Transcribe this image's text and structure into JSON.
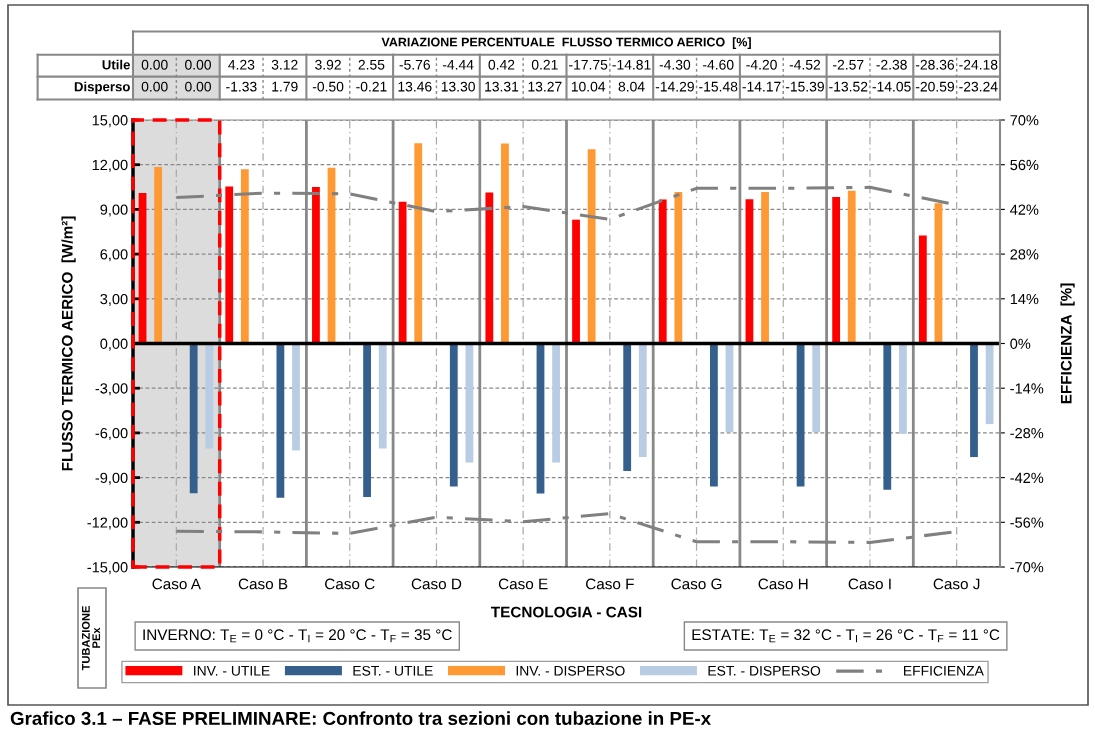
{
  "chart_data": {
    "type": "bar",
    "title": "Grafico 3.1 – FASE PRELIMINARE: Confronto tra sezioni con tubazione in PE-x",
    "xlabel": "TECNOLOGIA - CASI",
    "ylabel": "FLUSSO TERMICO AERICO  [W/m²]",
    "y2label": "EFFICIENZA  [%]",
    "categories": [
      "Caso A",
      "Caso B",
      "Caso C",
      "Caso D",
      "Caso E",
      "Caso F",
      "Caso G",
      "Caso H",
      "Caso I",
      "Caso J"
    ],
    "series": [
      {
        "name": "INV. - UTILE",
        "color": "#ff0000",
        "values": [
          10.1,
          10.53,
          10.5,
          9.52,
          10.14,
          8.31,
          9.67,
          9.68,
          9.84,
          7.24
        ]
      },
      {
        "name": "EST. - UTILE",
        "color": "#355f8d",
        "values": [
          -10.05,
          -10.36,
          -10.31,
          -9.6,
          -10.07,
          -8.56,
          -9.59,
          -9.6,
          -9.81,
          -7.62
        ]
      },
      {
        "name": "INV. - DISPERSO",
        "color": "#ff9933",
        "values": [
          11.85,
          11.69,
          11.79,
          13.44,
          13.43,
          13.04,
          10.16,
          10.17,
          10.25,
          9.41
        ]
      },
      {
        "name": "EST. - DISPERSO",
        "color": "#b8cce4",
        "values": [
          -7.05,
          -7.18,
          -7.04,
          -7.99,
          -7.99,
          -7.62,
          -5.96,
          -5.96,
          -6.06,
          -5.41
        ]
      },
      {
        "name": "EFFICIENZA",
        "type": "line",
        "axis": "y2",
        "color": "#808080",
        "line_style": "dashdot",
        "values": [
          45.7,
          47.1,
          46.9,
          41.3,
          42.9,
          38.9,
          48.6,
          48.6,
          48.9,
          43.4
        ]
      },
      {
        "type": "line",
        "axis": "y2",
        "color": "#808080",
        "line_style": "dashdot",
        "values": [
          -58.8,
          -59.0,
          -59.5,
          -54.4,
          -55.8,
          -53.3,
          -62.1,
          -62.1,
          -62.3,
          -58.9
        ]
      }
    ],
    "ylim": [
      -15,
      15
    ],
    "yticks": [
      {
        "value": -15,
        "label": "-15,00"
      },
      {
        "value": -12,
        "label": "-12,00"
      },
      {
        "value": -9,
        "label": "-9,00"
      },
      {
        "value": -6,
        "label": "-6,00"
      },
      {
        "value": -3,
        "label": "-3,00"
      },
      {
        "value": 0,
        "label": "0,00"
      },
      {
        "value": 3,
        "label": "3,00"
      },
      {
        "value": 6,
        "label": "6,00"
      },
      {
        "value": 9,
        "label": "9,00"
      },
      {
        "value": 12,
        "label": "12,00"
      },
      {
        "value": 15,
        "label": "15,00"
      }
    ],
    "y2lim": [
      -70,
      70
    ],
    "y2ticks": [
      {
        "value": -70,
        "label": "-70%"
      },
      {
        "value": -56,
        "label": "-56%"
      },
      {
        "value": -42,
        "label": "-42%"
      },
      {
        "value": -28,
        "label": "-28%"
      },
      {
        "value": -14,
        "label": "-14%"
      },
      {
        "value": 0,
        "label": "0%"
      },
      {
        "value": 14,
        "label": "14%"
      },
      {
        "value": 28,
        "label": "28%"
      },
      {
        "value": 42,
        "label": "42%"
      },
      {
        "value": 56,
        "label": "56%"
      },
      {
        "value": 70,
        "label": "70%"
      }
    ],
    "bands": [
      {
        "axis": "x",
        "from": "Caso A",
        "to": "Caso A",
        "color": "#dcdcdc"
      }
    ],
    "grid": true,
    "legend": "bottom",
    "annotations": [
      "VARIAZIONE PERCENTUALE  FLUSSO TERMICO AERICO  [%]",
      "Utile",
      "0.00",
      "0.00",
      "4.23",
      "3.12",
      "3.92",
      "2.55",
      "-5.76",
      "-4.44",
      "0.42",
      "0.21",
      "-17.75",
      "-14.81",
      "-4.30",
      "-4.60",
      "-4.20",
      "-4.52",
      "-2.57",
      "-2.38",
      "-28.36",
      "-24.18",
      "Disperso",
      "0.00",
      "0.00",
      "-1.33",
      "1.79",
      "-0.50",
      "-0.21",
      "13.46",
      "13.30",
      "13.31",
      "13.27",
      "10.04",
      "8.04",
      "-14.29",
      "-15.48",
      "-14.17",
      "-15.39",
      "-13.52",
      "-14.05",
      "-20.59",
      "-23.24",
      "TUBAZIONE\nPEx",
      "INVERNO: T$_{E}$ = 0 °C - T$_{I}$ = 20 °C - T$_{F}$ = 35 °C",
      "ESTATE: T$_{E}$ = 32 °C - T$_{I}$ = 26 °C - T$_{F}$ = 11 °C"
    ]
  }
}
